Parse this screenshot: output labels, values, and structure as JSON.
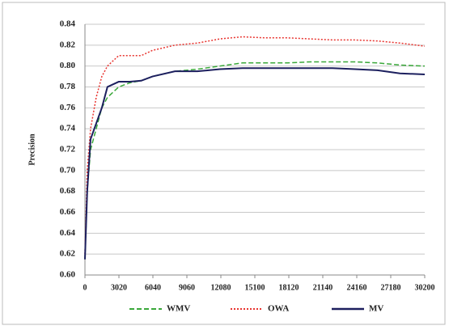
{
  "chart_data": {
    "type": "line",
    "y_label": "Precision",
    "x": [
      0,
      200,
      500,
      1000,
      1500,
      2000,
      3000,
      4000,
      5000,
      6000,
      8000,
      10000,
      12000,
      14000,
      16000,
      18000,
      20000,
      22000,
      24000,
      26000,
      28000,
      30200
    ],
    "series": [
      {
        "name": "WMV",
        "color": "#3aa83a",
        "dash": "dashed",
        "values": [
          0.615,
          0.68,
          0.72,
          0.74,
          0.76,
          0.77,
          0.78,
          0.784,
          0.786,
          0.79,
          0.795,
          0.797,
          0.8,
          0.803,
          0.803,
          0.803,
          0.804,
          0.804,
          0.804,
          0.803,
          0.801,
          0.8
        ]
      },
      {
        "name": "OWA",
        "color": "#e8342f",
        "dash": "dotted",
        "values": [
          0.62,
          0.7,
          0.74,
          0.77,
          0.79,
          0.8,
          0.81,
          0.81,
          0.81,
          0.815,
          0.82,
          0.822,
          0.826,
          0.828,
          0.827,
          0.827,
          0.826,
          0.825,
          0.825,
          0.824,
          0.822,
          0.819
        ]
      },
      {
        "name": "MV",
        "color": "#1c1f5e",
        "dash": "solid",
        "values": [
          0.615,
          0.68,
          0.73,
          0.745,
          0.76,
          0.78,
          0.785,
          0.785,
          0.786,
          0.79,
          0.795,
          0.795,
          0.797,
          0.798,
          0.798,
          0.798,
          0.798,
          0.798,
          0.797,
          0.796,
          0.793,
          0.792
        ]
      }
    ],
    "xlim": [
      0,
      30200
    ],
    "xticks": [
      0,
      3020,
      6040,
      9060,
      12080,
      15100,
      18120,
      21140,
      24160,
      27180,
      30200
    ],
    "ylim": [
      0.6,
      0.84
    ],
    "yticks": [
      {
        "value": 0.6,
        "label": "0.60"
      },
      0.62,
      0.64,
      0.66,
      0.68,
      {
        "value": 0.7,
        "label": "0.70"
      },
      0.72,
      0.74,
      0.76,
      0.78,
      {
        "value": 0.8,
        "label": "0.80"
      },
      0.82,
      0.84
    ],
    "grid": true,
    "legend": "bottom"
  }
}
